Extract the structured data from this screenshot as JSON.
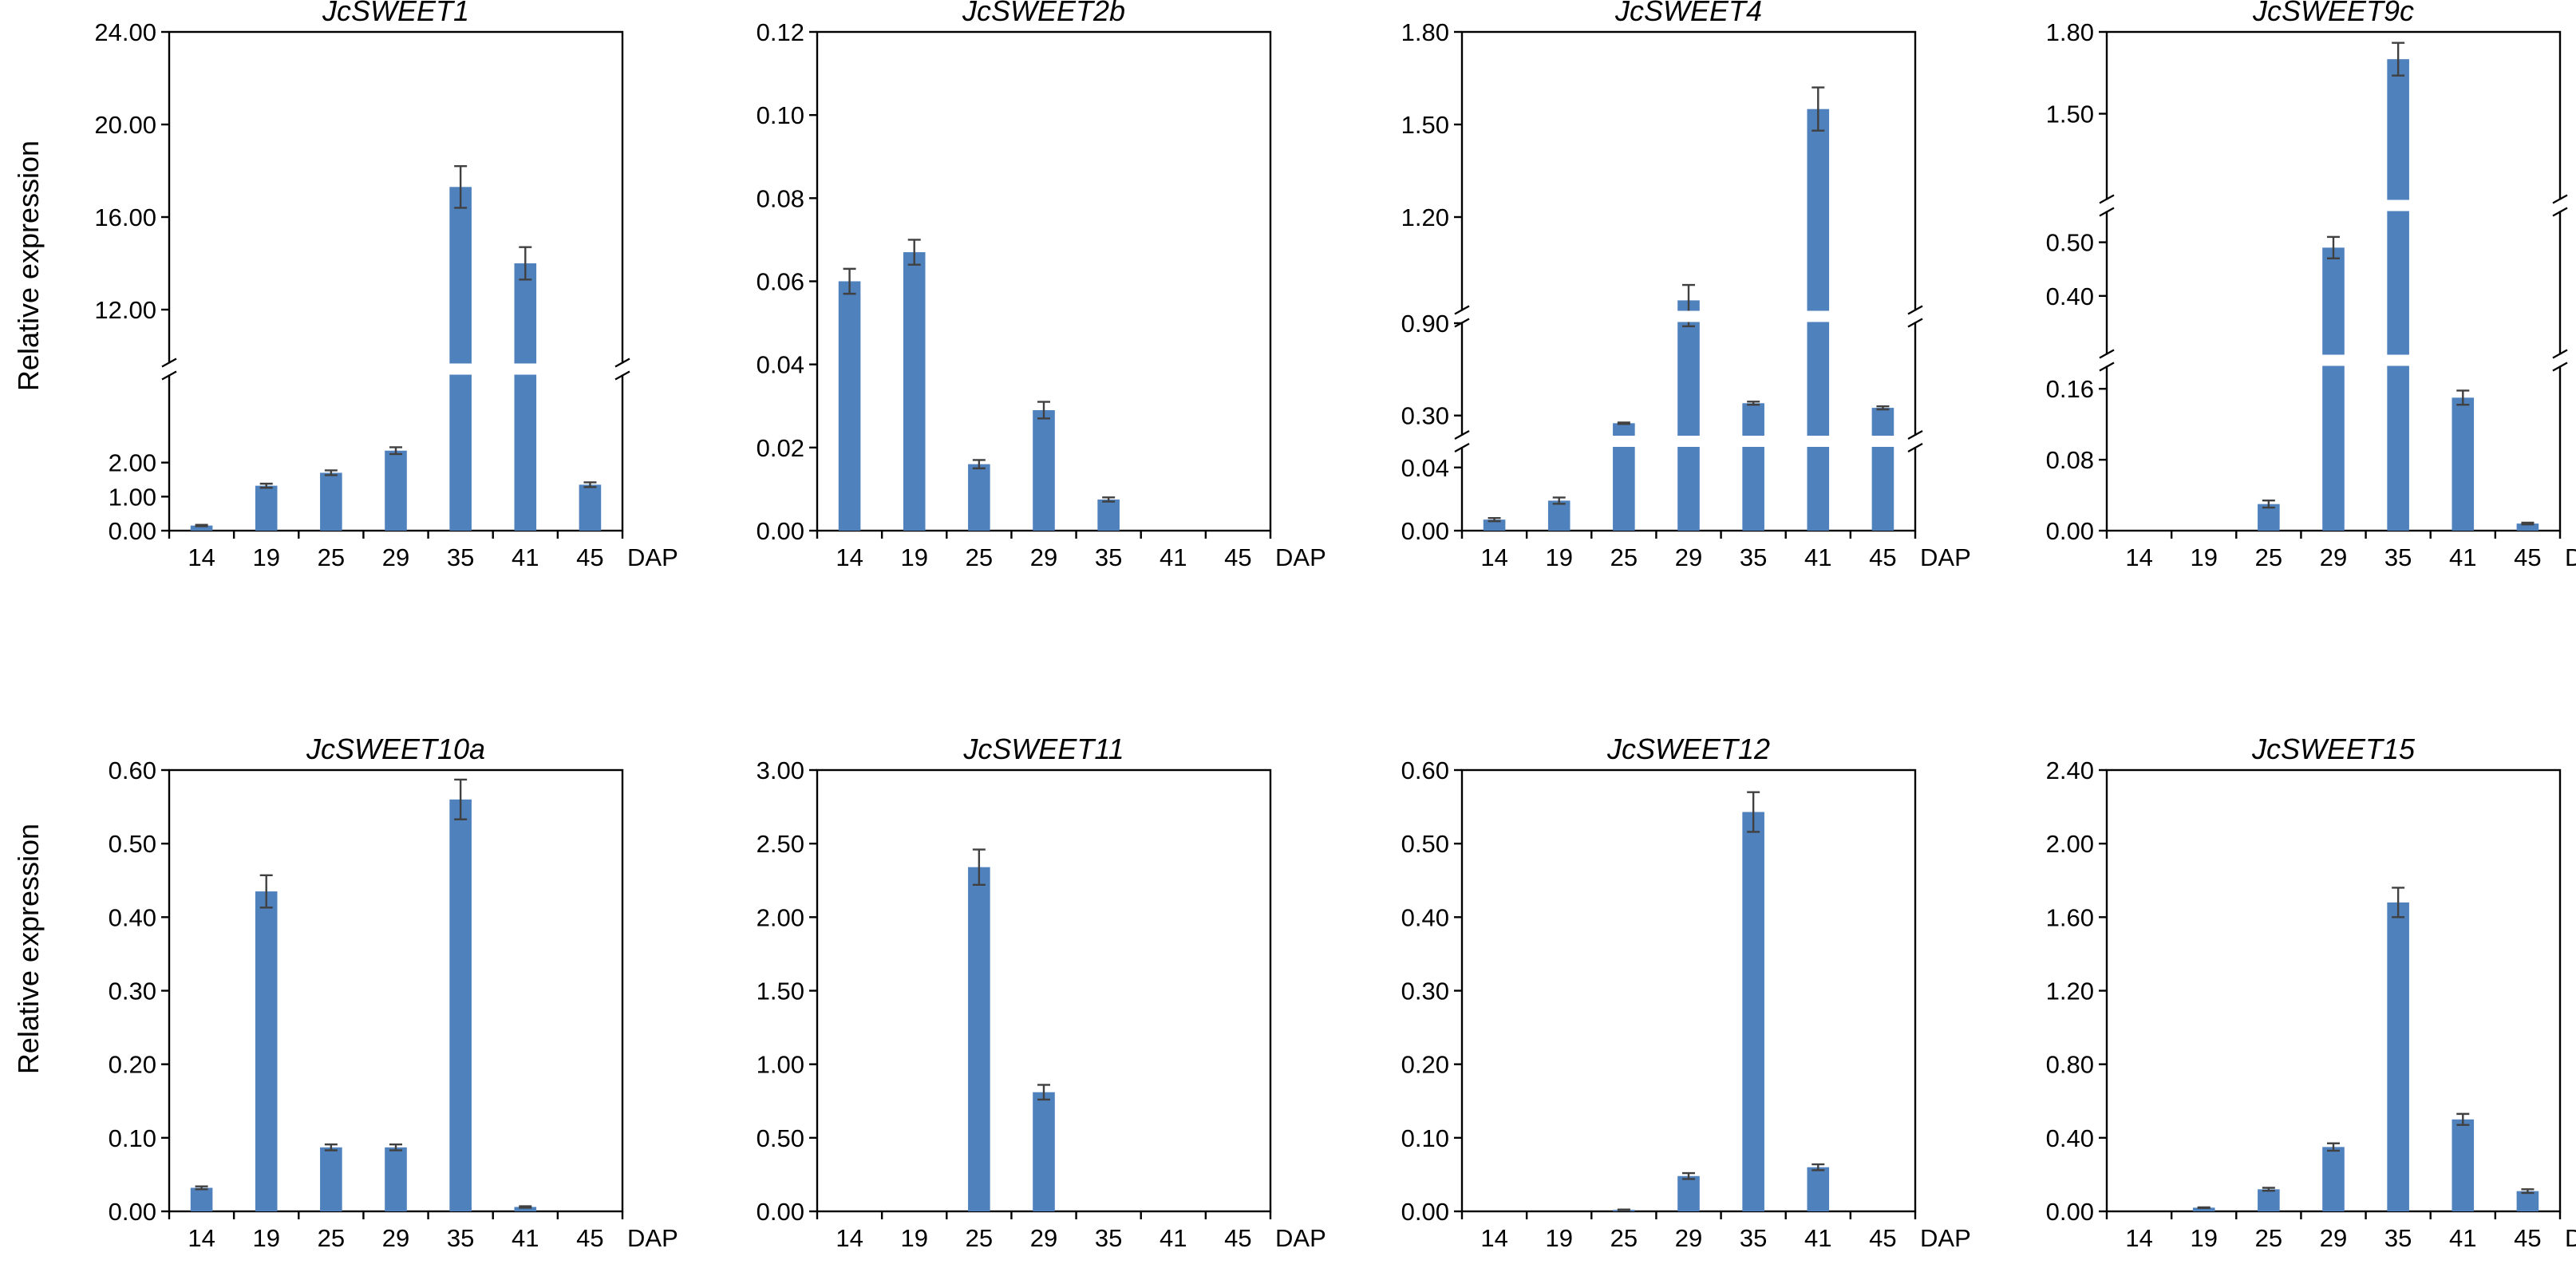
{
  "figure": {
    "ylabel": "Relative expression",
    "bar_color": "#4f81bd",
    "error_color": "#404040",
    "x_unit": "DAP"
  },
  "chart_data": [
    {
      "type": "bar",
      "title": "JcSWEET1",
      "categories": [
        "14",
        "19",
        "25",
        "29",
        "35",
        "41",
        "45"
      ],
      "values": [
        0.15,
        1.32,
        1.7,
        2.35,
        17.3,
        14.0,
        1.35
      ],
      "errors": [
        0.02,
        0.06,
        0.07,
        0.1,
        0.9,
        0.7,
        0.07
      ],
      "xlabel": "DAP",
      "ylabel": "Relative expression",
      "axis_break": true,
      "segments": [
        {
          "ylim": [
            0,
            3
          ],
          "ticks": [
            "0.00",
            "1.00",
            "2.00"
          ]
        },
        {
          "ylim": [
            12,
            24
          ],
          "ticks": [
            "12.00",
            "16.00",
            "20.00",
            "24.00"
          ]
        }
      ]
    },
    {
      "type": "bar",
      "title": "JcSWEET2b",
      "categories": [
        "14",
        "19",
        "25",
        "29",
        "35",
        "41",
        "45"
      ],
      "values": [
        0.06,
        0.067,
        0.016,
        0.029,
        0.0075,
        0,
        0
      ],
      "errors": [
        0.003,
        0.003,
        0.001,
        0.002,
        0.0005,
        0,
        0
      ],
      "xlabel": "DAP",
      "ylabel": "",
      "axis_break": false,
      "segments": [
        {
          "ylim": [
            0,
            0.12
          ],
          "ticks": [
            "0.00",
            "0.02",
            "0.04",
            "0.06",
            "0.08",
            "0.10",
            "0.12"
          ]
        }
      ]
    },
    {
      "type": "bar",
      "title": "JcSWEET4",
      "categories": [
        "14",
        "19",
        "25",
        "29",
        "35",
        "41",
        "45"
      ],
      "values": [
        0.007,
        0.019,
        0.25,
        0.93,
        0.38,
        1.55,
        0.35
      ],
      "errors": [
        0.001,
        0.002,
        0.005,
        0.05,
        0.01,
        0.07,
        0.01
      ],
      "xlabel": "DAP",
      "ylabel": "",
      "axis_break": true,
      "segments": [
        {
          "ylim": [
            0,
            0.05
          ],
          "ticks": [
            "0.00",
            "0.04"
          ]
        },
        {
          "ylim": [
            0.2,
            0.9
          ],
          "ticks": [
            "0.30",
            "0.90"
          ]
        },
        {
          "ylim": [
            0.9,
            1.8
          ],
          "ticks": [
            "1.20",
            "1.50",
            "1.80"
          ]
        }
      ]
    },
    {
      "type": "bar",
      "title": "JcSWEET9c",
      "categories": [
        "14",
        "19",
        "25",
        "29",
        "35",
        "41",
        "45"
      ],
      "values": [
        0,
        0,
        0.03,
        0.49,
        1.7,
        0.15,
        0.008
      ],
      "errors": [
        0,
        0,
        0.004,
        0.02,
        0.06,
        0.008,
        0.001
      ],
      "xlabel": "DAP",
      "ylabel": "",
      "axis_break": true,
      "segments": [
        {
          "ylim": [
            0,
            0.18
          ],
          "ticks": [
            "0.00",
            "0.08",
            "0.16"
          ]
        },
        {
          "ylim": [
            0.3,
            0.55
          ],
          "ticks": [
            "0.40",
            "0.50"
          ]
        },
        {
          "ylim": [
            1.2,
            1.8
          ],
          "ticks": [
            "1.50",
            "1.80"
          ]
        }
      ]
    },
    {
      "type": "bar",
      "title": "JcSWEET10a",
      "categories": [
        "14",
        "19",
        "25",
        "29",
        "35",
        "41",
        "45"
      ],
      "values": [
        0.032,
        0.435,
        0.087,
        0.087,
        0.56,
        0.006,
        0
      ],
      "errors": [
        0.002,
        0.022,
        0.004,
        0.004,
        0.027,
        0.001,
        0
      ],
      "xlabel": "DAP",
      "ylabel": "Relative expression",
      "axis_break": false,
      "segments": [
        {
          "ylim": [
            0,
            0.6
          ],
          "ticks": [
            "0.00",
            "0.10",
            "0.20",
            "0.30",
            "0.40",
            "0.50",
            "0.60"
          ]
        }
      ]
    },
    {
      "type": "bar",
      "title": "JcSWEET11",
      "categories": [
        "14",
        "19",
        "25",
        "29",
        "35",
        "41",
        "45"
      ],
      "values": [
        0,
        0,
        2.34,
        0.81,
        0,
        0,
        0
      ],
      "errors": [
        0,
        0,
        0.12,
        0.05,
        0,
        0,
        0
      ],
      "xlabel": "DAP",
      "ylabel": "",
      "axis_break": false,
      "segments": [
        {
          "ylim": [
            0,
            3
          ],
          "ticks": [
            "0.00",
            "0.50",
            "1.00",
            "1.50",
            "2.00",
            "2.50",
            "3.00"
          ]
        }
      ]
    },
    {
      "type": "bar",
      "title": "JcSWEET12",
      "categories": [
        "14",
        "19",
        "25",
        "29",
        "35",
        "41",
        "45"
      ],
      "values": [
        0,
        0,
        0.002,
        0.048,
        0.543,
        0.06,
        0
      ],
      "errors": [
        0,
        0,
        0.0005,
        0.004,
        0.027,
        0.004,
        0
      ],
      "xlabel": "DAP",
      "ylabel": "",
      "axis_break": false,
      "segments": [
        {
          "ylim": [
            0,
            0.6
          ],
          "ticks": [
            "0.00",
            "0.10",
            "0.20",
            "0.30",
            "0.40",
            "0.50",
            "0.60"
          ]
        }
      ]
    },
    {
      "type": "bar",
      "title": "JcSWEET15",
      "categories": [
        "14",
        "19",
        "25",
        "29",
        "35",
        "41",
        "45"
      ],
      "values": [
        0,
        0.02,
        0.12,
        0.35,
        1.68,
        0.5,
        0.11
      ],
      "errors": [
        0,
        0.002,
        0.008,
        0.02,
        0.08,
        0.03,
        0.01
      ],
      "xlabel": "DAP",
      "ylabel": "",
      "axis_break": false,
      "segments": [
        {
          "ylim": [
            0,
            2.4
          ],
          "ticks": [
            "0.00",
            "0.40",
            "0.80",
            "1.20",
            "1.60",
            "2.00",
            "2.40"
          ]
        }
      ]
    }
  ]
}
